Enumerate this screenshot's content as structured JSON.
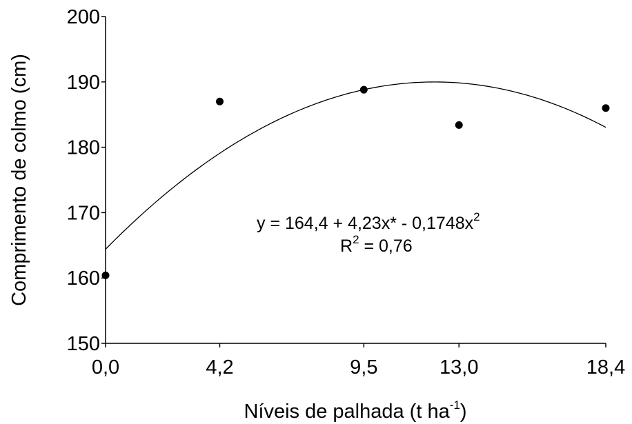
{
  "chart_data": {
    "type": "scatter",
    "title": "",
    "xlabel": {
      "text": "Níveis de palhada (t ha",
      "superscript": "-1",
      "suffix": ")"
    },
    "ylabel": "Comprimento de colmo (cm)",
    "x_tick_labels": [
      "0,0",
      "4,2",
      "9,5",
      "13,0",
      "18,4"
    ],
    "x_tick_values": [
      0,
      4.2,
      9.5,
      13.0,
      18.4
    ],
    "y_ticks": [
      150,
      160,
      170,
      180,
      190,
      200
    ],
    "ylim": [
      150,
      200
    ],
    "xlim": [
      0,
      18.4
    ],
    "grid": false,
    "points": [
      {
        "x": 0.0,
        "y": 160.4
      },
      {
        "x": 4.2,
        "y": 187.0
      },
      {
        "x": 9.5,
        "y": 188.8
      },
      {
        "x": 13.0,
        "y": 183.4
      },
      {
        "x": 18.4,
        "y": 186.0
      }
    ],
    "fit": {
      "type": "quadratic",
      "a": 164.4,
      "b": 4.23,
      "c": -0.1748
    },
    "equation": {
      "line1_main": "y = 164,4 + 4,23x* - 0,1748x",
      "line1_sup": "2",
      "line2_pre": "R",
      "line2_sup": "2",
      "line2_post": " = 0,76"
    }
  }
}
